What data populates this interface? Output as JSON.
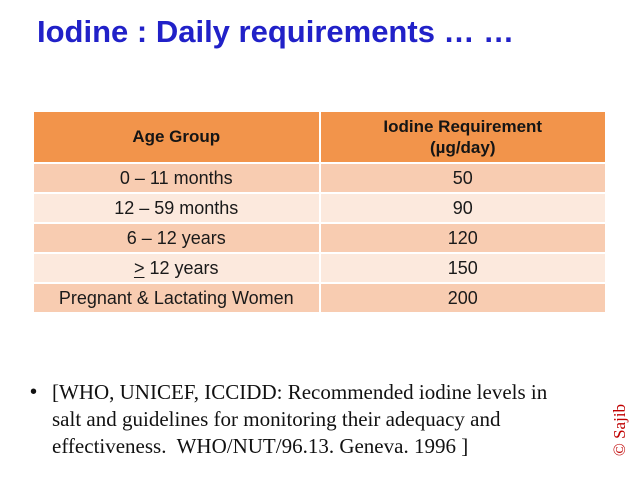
{
  "slide": {
    "title": "Iodine : Daily requirements … …",
    "watermark": "© Sajib"
  },
  "table": {
    "columns": [
      {
        "label": "Age Group"
      },
      {
        "label": "Iodine Requirement\n(µg/day)"
      }
    ],
    "rows": [
      {
        "cells": [
          {
            "text": "0 – 11 months"
          },
          {
            "text": "50"
          }
        ]
      },
      {
        "cells": [
          {
            "text": "12 – 59 months"
          },
          {
            "text": "90"
          }
        ]
      },
      {
        "cells": [
          {
            "text": "6 – 12 years"
          },
          {
            "text": "120"
          }
        ]
      },
      {
        "cells": [
          {
            "prefix": ">",
            "text": " 12 years"
          },
          {
            "text": "150"
          }
        ]
      },
      {
        "cells": [
          {
            "text": "Pregnant & Lactating Women"
          },
          {
            "text": "200"
          }
        ]
      }
    ]
  },
  "citation": {
    "bullet": "•",
    "text": "[WHO, UNICEF, ICCIDD: Recommended iodine levels in\nsalt and guidelines for monitoring their adequacy and\neffectiveness.  WHO/NUT/96.13. Geneva. 1996 ]"
  },
  "colors": {
    "title_blue": "#2121c8",
    "header_orange": "#f2944b",
    "row_dark_peach": "#f8ccb1",
    "row_light_peach": "#fce9dd",
    "watermark_red": "#c00000"
  }
}
